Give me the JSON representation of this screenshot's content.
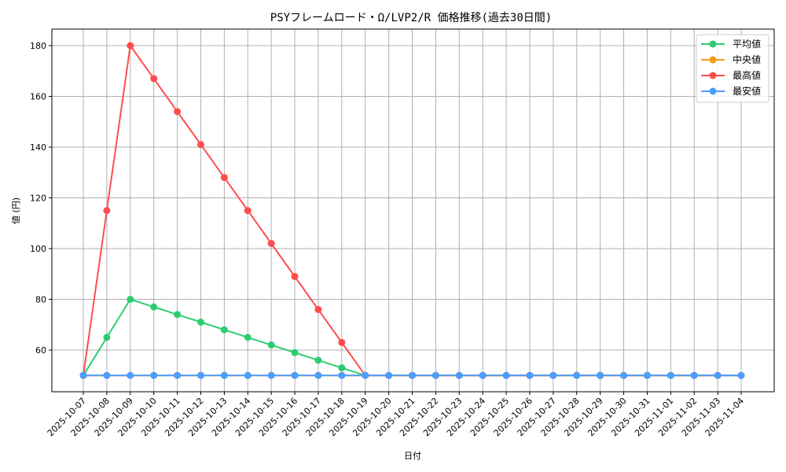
{
  "chart_data": {
    "type": "line",
    "title": "PSYフレームロード・Ω/LVP2/R 価格推移(過去30日間)",
    "xlabel": "日付",
    "ylabel": "値 (円)",
    "ylim": [
      44,
      186
    ],
    "yticks": [
      60,
      80,
      100,
      120,
      140,
      160,
      180
    ],
    "grid": true,
    "legend_position": "upper right",
    "categories": [
      "2025-10-07",
      "2025-10-08",
      "2025-10-09",
      "2025-10-10",
      "2025-10-11",
      "2025-10-12",
      "2025-10-13",
      "2025-10-14",
      "2025-10-15",
      "2025-10-16",
      "2025-10-17",
      "2025-10-18",
      "2025-10-19",
      "2025-10-20",
      "2025-10-21",
      "2025-10-22",
      "2025-10-23",
      "2025-10-24",
      "2025-10-25",
      "2025-10-26",
      "2025-10-27",
      "2025-10-28",
      "2025-10-29",
      "2025-10-30",
      "2025-10-31",
      "2025-11-01",
      "2025-11-02",
      "2025-11-03",
      "2025-11-04"
    ],
    "series": [
      {
        "name": "平均値",
        "color": "#2ecc71",
        "values": [
          50,
          65,
          80,
          77,
          74,
          71,
          68,
          65,
          62,
          59,
          56,
          53,
          50,
          50,
          50,
          50,
          50,
          50,
          50,
          50,
          50,
          50,
          50,
          50,
          50,
          50,
          50,
          50,
          50
        ]
      },
      {
        "name": "中央値",
        "color": "#f39c12",
        "values": [
          50,
          50,
          50,
          50,
          50,
          50,
          50,
          50,
          50,
          50,
          50,
          50,
          50,
          50,
          50,
          50,
          50,
          50,
          50,
          50,
          50,
          50,
          50,
          50,
          50,
          50,
          50,
          50,
          50
        ]
      },
      {
        "name": "最高値",
        "color": "#ff4d4d",
        "values": [
          50,
          115,
          180,
          167,
          154,
          141,
          128,
          115,
          102,
          89,
          76,
          63,
          50,
          50,
          50,
          50,
          50,
          50,
          50,
          50,
          50,
          50,
          50,
          50,
          50,
          50,
          50,
          50,
          50
        ]
      },
      {
        "name": "最安値",
        "color": "#4d9dff",
        "values": [
          50,
          50,
          50,
          50,
          50,
          50,
          50,
          50,
          50,
          50,
          50,
          50,
          50,
          50,
          50,
          50,
          50,
          50,
          50,
          50,
          50,
          50,
          50,
          50,
          50,
          50,
          50,
          50,
          50
        ]
      }
    ]
  }
}
